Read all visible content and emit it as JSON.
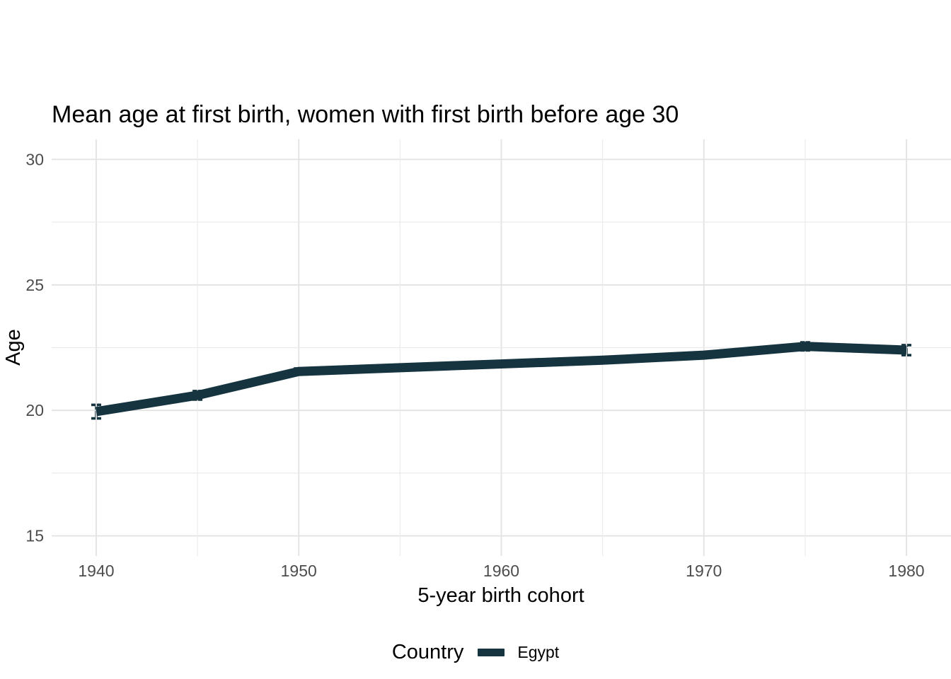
{
  "title": "Mean age at first birth, women with first birth before age 30",
  "axes": {
    "x": {
      "label": "5-year birth cohort",
      "major_ticks": [
        1940,
        1950,
        1960,
        1970,
        1980
      ],
      "minor_ticks": [
        1945,
        1955,
        1965,
        1975
      ]
    },
    "y": {
      "label": "Age",
      "major_ticks": [
        15,
        20,
        25,
        30
      ],
      "minor_ticks": [
        17.5,
        22.5,
        27.5
      ]
    }
  },
  "legend": {
    "title": "Country",
    "entries": [
      {
        "label": "Egypt",
        "color": "#163440"
      }
    ]
  },
  "colors": {
    "line": "#163440",
    "grid_major": "#e2e2e2",
    "grid_minor": "#ebebeb",
    "tick_text": "#4d4d4d",
    "text": "#000000",
    "background": "#ffffff"
  },
  "chart_data": {
    "type": "line",
    "title": "Mean age at first birth, women with first birth before age 30",
    "xlabel": "5-year birth cohort",
    "ylabel": "Age",
    "xlim": [
      1937.8,
      1982.2
    ],
    "ylim": [
      14.2,
      30.8
    ],
    "grid": true,
    "legend_position": "bottom",
    "x": [
      1940,
      1945,
      1950,
      1955,
      1960,
      1965,
      1970,
      1975,
      1980
    ],
    "series": [
      {
        "name": "Egypt",
        "color": "#163440",
        "values": [
          19.95,
          20.6,
          21.55,
          21.7,
          21.85,
          22.0,
          22.2,
          22.55,
          22.4
        ],
        "y_err": [
          0.27,
          0.17,
          0.12,
          0.1,
          0.1,
          0.1,
          0.1,
          0.16,
          0.2
        ]
      }
    ]
  }
}
